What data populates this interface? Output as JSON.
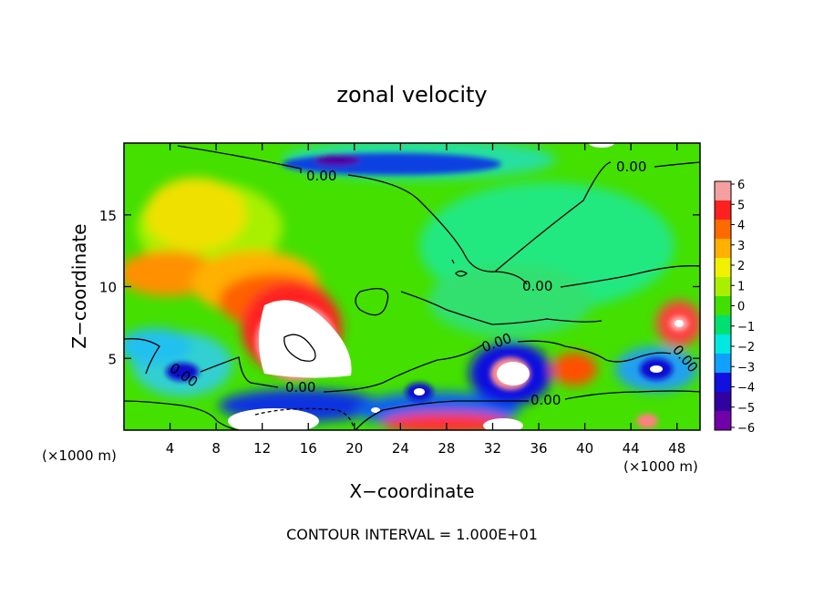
{
  "chart_data": {
    "type": "heatmap",
    "title": "zonal velocity",
    "xlabel": "X−coordinate",
    "ylabel": "Z−coordinate",
    "x_unit_left": "(×1000 m)",
    "x_unit_right": "(×1000 m)",
    "xlim": [
      0,
      50
    ],
    "ylim": [
      0,
      20
    ],
    "x_ticks": [
      4,
      8,
      12,
      16,
      20,
      24,
      28,
      32,
      36,
      40,
      44,
      48
    ],
    "y_ticks": [
      5,
      10,
      15
    ],
    "colorbar": {
      "min": -6,
      "max": 6,
      "ticks": [
        "6",
        "5",
        "4",
        "3",
        "2",
        "1",
        "0",
        "−1",
        "−2",
        "−3",
        "−4",
        "−5",
        "−6"
      ],
      "colors": [
        "#f4a0a0",
        "#ff2020",
        "#ff6a00",
        "#ffb000",
        "#f0f000",
        "#a8f000",
        "#40e000",
        "#00e070",
        "#00e8e0",
        "#10a0ff",
        "#1010e0",
        "#3000a0",
        "#7000a8"
      ]
    },
    "contour_labels": [
      "0.00",
      "0.00",
      "0.00",
      "0.00",
      "0.00",
      "0.00",
      "0.00"
    ],
    "footer": "CONTOUR INTERVAL = 1.000E+01"
  }
}
